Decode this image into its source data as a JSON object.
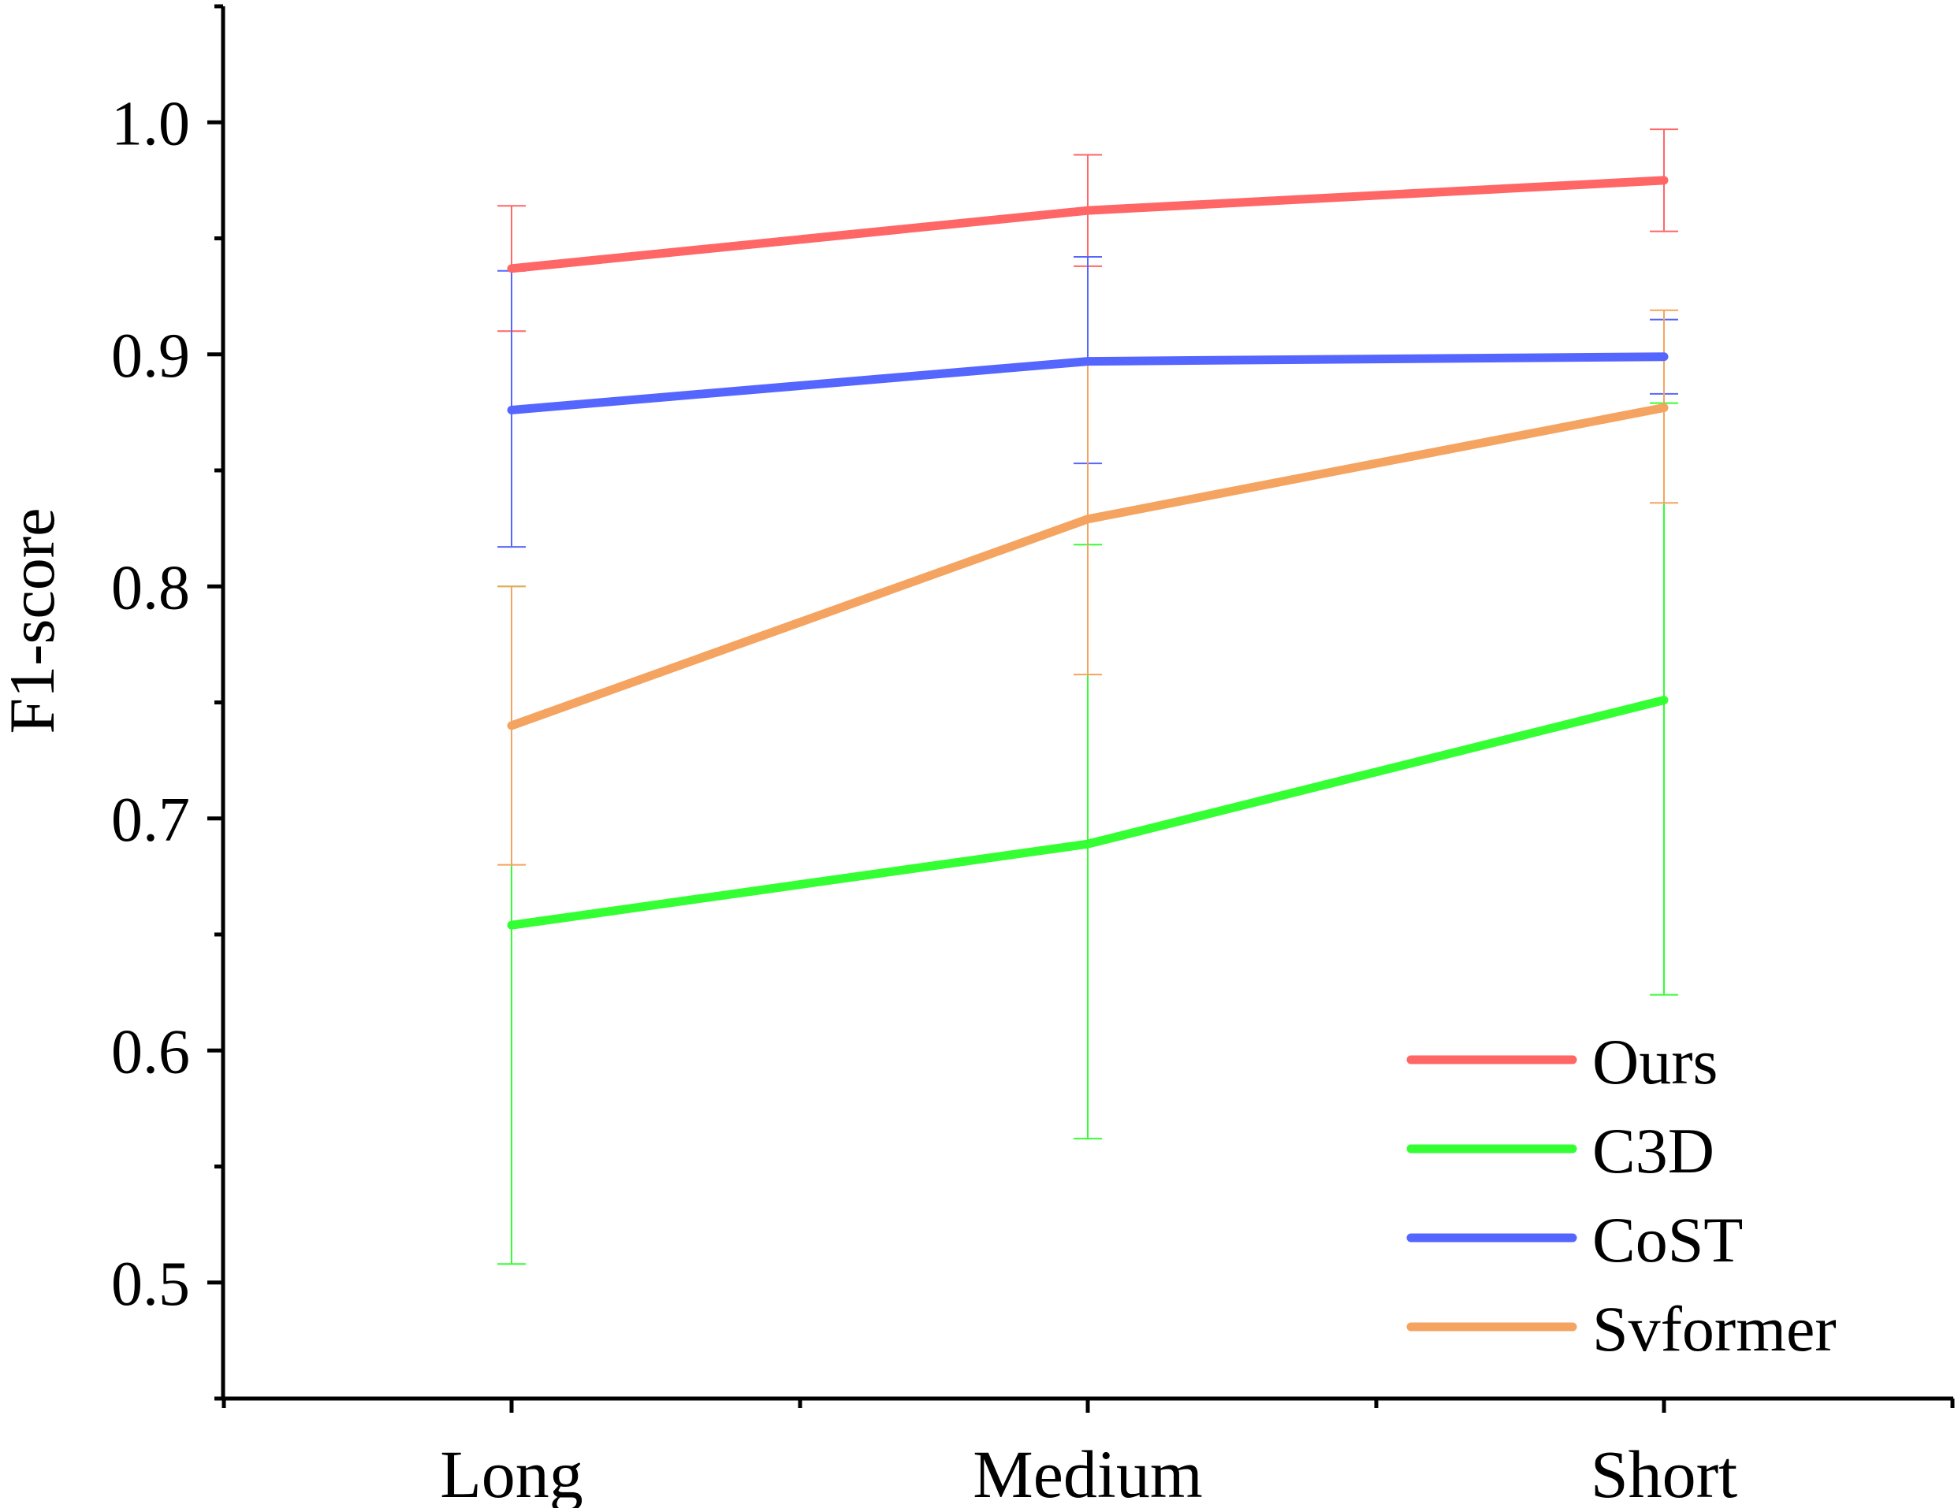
{
  "chart_data": {
    "type": "line",
    "title": "",
    "xlabel": "",
    "ylabel": "F1-score",
    "categories": [
      "Long",
      "Medium",
      "Short"
    ],
    "ylim": [
      0.45,
      1.05
    ],
    "yticks": [
      "0.5",
      "0.6",
      "0.7",
      "0.8",
      "0.9",
      "1.0"
    ],
    "ytick_values": [
      0.5,
      0.6,
      0.7,
      0.8,
      0.9,
      1.0
    ],
    "legend_position": "bottom-right",
    "series": [
      {
        "name": "Ours",
        "color": "#FF6666",
        "values": [
          0.937,
          0.962,
          0.975
        ],
        "error_low": [
          0.91,
          0.938,
          0.953
        ],
        "error_high": [
          0.964,
          0.986,
          0.997
        ]
      },
      {
        "name": "C3D",
        "color": "#33FF33",
        "values": [
          0.654,
          0.689,
          0.751
        ],
        "error_low": [
          0.508,
          0.562,
          0.624
        ],
        "error_high": [
          0.8,
          0.818,
          0.879
        ]
      },
      {
        "name": "CoST",
        "color": "#5566FF",
        "values": [
          0.876,
          0.897,
          0.899
        ],
        "error_low": [
          0.817,
          0.853,
          0.883
        ],
        "error_high": [
          0.936,
          0.942,
          0.915
        ]
      },
      {
        "name": "Svformer",
        "color": "#F4A460",
        "values": [
          0.74,
          0.829,
          0.877
        ],
        "error_low": [
          0.68,
          0.762,
          0.836
        ],
        "error_high": [
          0.8,
          0.897,
          0.919
        ]
      }
    ]
  }
}
